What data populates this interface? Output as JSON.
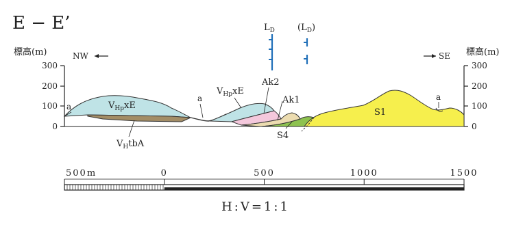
{
  "section_title": "E − E’",
  "elevation_label_left": "標高(m)",
  "elevation_label_right": "標高(m)",
  "direction_left": "NW",
  "direction_right": "SE",
  "elevation_ticks": [
    "300",
    "200",
    "100",
    "0"
  ],
  "borehole_labels": [
    {
      "main": "L",
      "sub": "D",
      "pre": "",
      "post": ""
    },
    {
      "main": "(L",
      "sub": "D",
      "pre": "",
      "post": ")"
    }
  ],
  "units": [
    {
      "name": "VHpxE-left",
      "prefix": "V",
      "sub": "Hp",
      "suffix": "xE",
      "color": "#bfe3e6"
    },
    {
      "name": "VHtbA",
      "prefix": "V",
      "sub": "H",
      "suffix": "tbA",
      "color": "#a38d66"
    },
    {
      "name": "VHpxE-right",
      "prefix": "V",
      "sub": "Hp",
      "suffix": "xE",
      "color": "#bfe3e6"
    },
    {
      "name": "Ak2",
      "prefix": "Ak2",
      "sub": "",
      "suffix": "",
      "color": "#f4c8dc"
    },
    {
      "name": "Ak1",
      "prefix": "Ak1",
      "sub": "",
      "suffix": "",
      "color": "#ecdcb0"
    },
    {
      "name": "S4",
      "prefix": "S4",
      "sub": "",
      "suffix": "",
      "color": "#8dc24f"
    },
    {
      "name": "S1",
      "prefix": "S1",
      "sub": "",
      "suffix": "",
      "color": "#f6ef4d"
    }
  ],
  "alluvium_labels": [
    "a",
    "a",
    "a"
  ],
  "scale_bar": {
    "ticks": [
      "500m",
      "0",
      "500",
      "1000",
      "1500"
    ],
    "values": [
      -500,
      0,
      500,
      1000,
      1500
    ]
  },
  "ratio": "H:V=1:1"
}
